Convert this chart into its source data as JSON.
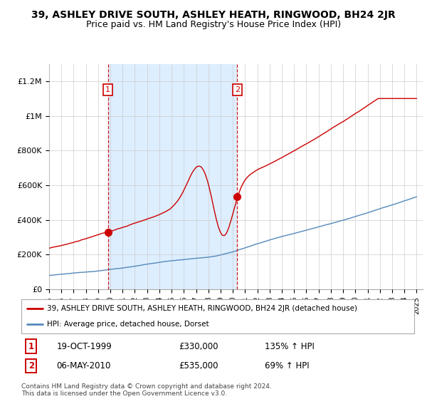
{
  "title": "39, ASHLEY DRIVE SOUTH, ASHLEY HEATH, RINGWOOD, BH24 2JR",
  "subtitle": "Price paid vs. HM Land Registry's House Price Index (HPI)",
  "ylabel_ticks": [
    "£0",
    "£200K",
    "£400K",
    "£600K",
    "£800K",
    "£1M",
    "£1.2M"
  ],
  "ytick_values": [
    0,
    200000,
    400000,
    600000,
    800000,
    1000000,
    1200000
  ],
  "ylim": [
    0,
    1300000
  ],
  "xlim_start": 1995.0,
  "xlim_end": 2025.5,
  "red_line_color": "#cc0000",
  "blue_line_color": "#5588bb",
  "shade_color": "#ddeeff",
  "marker1_x": 1999.8,
  "marker1_y": 330000,
  "marker2_x": 2010.35,
  "marker2_y": 535000,
  "vline1_x": 1999.8,
  "vline2_x": 2010.35,
  "legend_line1": "39, ASHLEY DRIVE SOUTH, ASHLEY HEATH, RINGWOOD, BH24 2JR (detached house)",
  "legend_line2": "HPI: Average price, detached house, Dorset",
  "table_row1_num": "1",
  "table_row1_date": "19-OCT-1999",
  "table_row1_price": "£330,000",
  "table_row1_hpi": "135% ↑ HPI",
  "table_row2_num": "2",
  "table_row2_date": "06-MAY-2010",
  "table_row2_price": "£535,000",
  "table_row2_hpi": "69% ↑ HPI",
  "footnote": "Contains HM Land Registry data © Crown copyright and database right 2024.\nThis data is licensed under the Open Government Licence v3.0.",
  "background_color": "#ffffff",
  "grid_color": "#cccccc",
  "title_fontsize": 10,
  "subtitle_fontsize": 9
}
